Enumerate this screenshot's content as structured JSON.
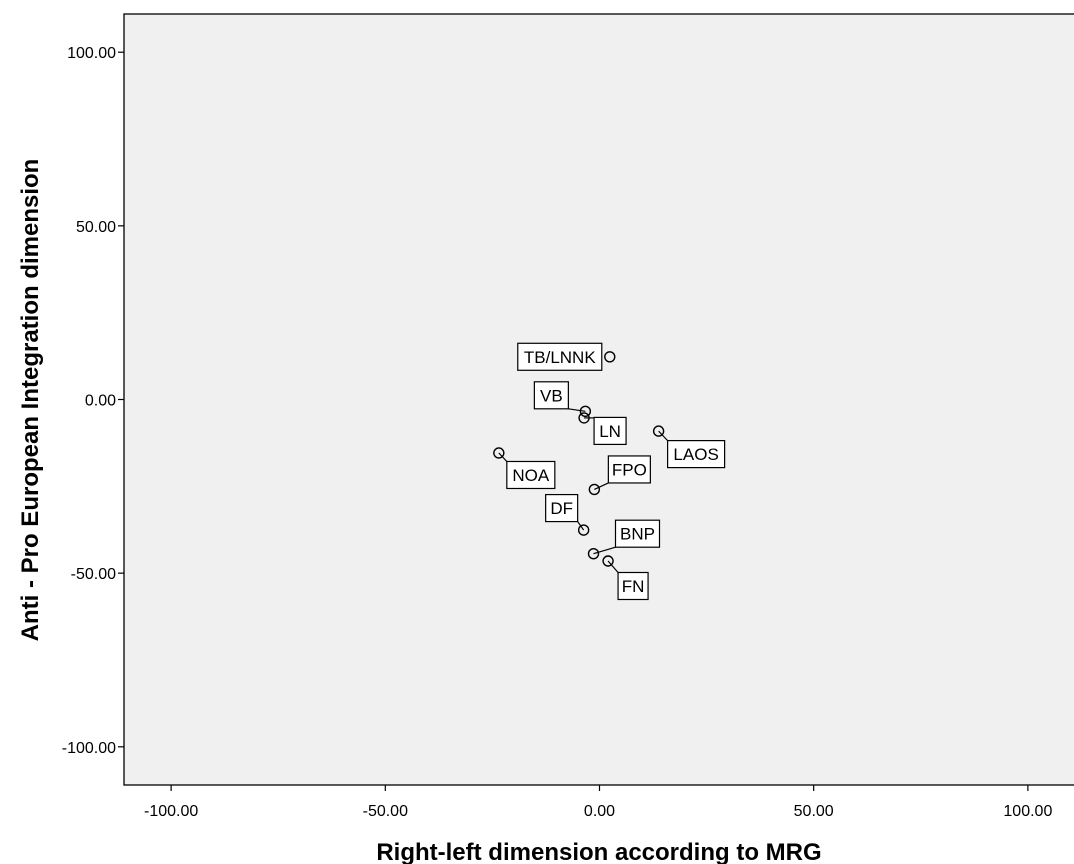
{
  "chart_data": {
    "type": "scatter",
    "title": "",
    "xlabel": "Right-left dimension according to MRG",
    "ylabel": "Anti - Pro European Integration dimension",
    "xlim": [
      -111,
      111
    ],
    "ylim": [
      -111,
      111
    ],
    "xticks": [
      -100,
      -50,
      0,
      50,
      100
    ],
    "yticks": [
      -100,
      -50,
      0,
      50,
      100
    ],
    "xtick_labels": [
      "-100.00",
      "-50.00",
      "0.00",
      "50.00",
      "100.00"
    ],
    "ytick_labels": [
      "-100.00",
      "-50.00",
      "0.00",
      "50.00",
      "100.00"
    ],
    "grid": false,
    "points": [
      {
        "label": "TB/LNNK",
        "x": 2.4,
        "y": 12.3
      },
      {
        "label": "VB",
        "x": -3.3,
        "y": -3.4
      },
      {
        "label": "LN",
        "x": -3.6,
        "y": -5.3
      },
      {
        "label": "LAOS",
        "x": 13.8,
        "y": -9.1
      },
      {
        "label": "NOA",
        "x": -23.5,
        "y": -15.4
      },
      {
        "label": "FPO",
        "x": -1.2,
        "y": -25.9
      },
      {
        "label": "DF",
        "x": -3.7,
        "y": -37.6
      },
      {
        "label": "BNP",
        "x": -1.4,
        "y": -44.4
      },
      {
        "label": "FN",
        "x": 2.0,
        "y": -46.5
      }
    ]
  }
}
